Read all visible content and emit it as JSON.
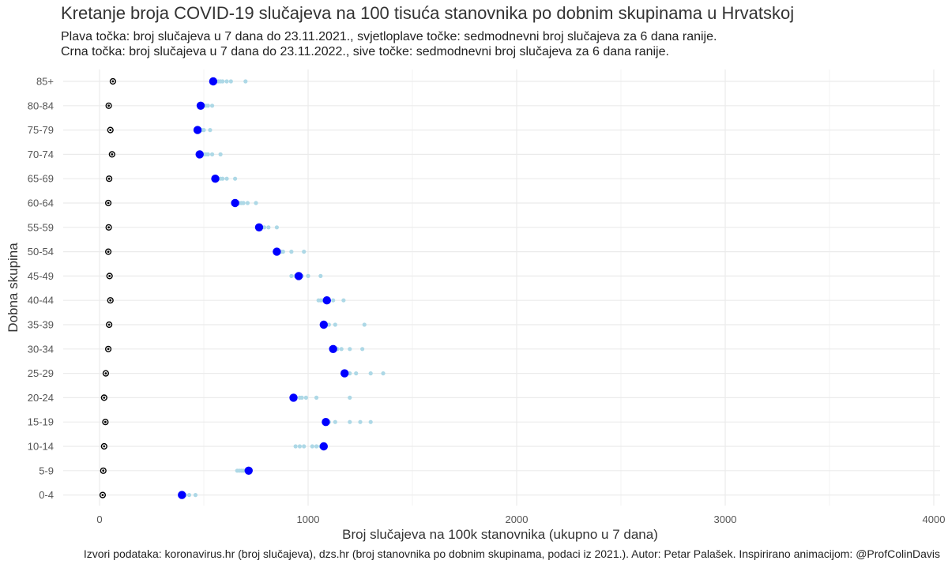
{
  "title": "Kretanje broja COVID-19 slučajeva na 100 tisuća stanovnika po dobnim skupinama u Hrvatskoj",
  "subtitle_line1": "Plava točka: broj slučajeva u 7 dana do 23.11.2021., svjetloplave točke: sedmodnevni broj slučajeva za 6 dana ranije.",
  "subtitle_line2": "Crna točka: broj slučajeva u 7 dana do 23.11.2022., sive točke: sedmodnevni broj slučajeva za 6 dana ranije.",
  "caption": "Izvori podataka: koronavirus.hr (broj slučajeva), dzs.hr (broj stanovnika po dobnim skupinama, podaci iz 2021.). Autor: Petar Palašek. Inspirirano animacijom: @ProfColinDavis",
  "colors": {
    "current_2021": "#0000ff",
    "previous_2021": "#add8e6",
    "current_2022": "#000000",
    "previous_2022": "#bebebe",
    "grid": "#ebebeb"
  },
  "chart_data": {
    "type": "scatter",
    "xlabel": "Broj slučajeva na 100k stanovnika (ukupno u 7 dana)",
    "ylabel": "Dobna skupina",
    "xlim": [
      -170,
      4030
    ],
    "x_ticks": [
      0,
      1000,
      2000,
      3000,
      4000
    ],
    "grid": true,
    "categories": [
      "0-4",
      "5-9",
      "10-14",
      "15-19",
      "20-24",
      "25-29",
      "30-34",
      "35-39",
      "40-44",
      "45-49",
      "50-54",
      "55-59",
      "60-64",
      "65-69",
      "70-74",
      "75-79",
      "80-84",
      "85+"
    ],
    "series": [
      {
        "key": "previous_2021",
        "values": [
          [
            460,
            430,
            410,
            400,
            395,
            390
          ],
          [
            660,
            670,
            680,
            690,
            700,
            705
          ],
          [
            940,
            960,
            980,
            1020,
            1040,
            1060
          ],
          [
            1300,
            1250,
            1200,
            1130,
            1100,
            1090
          ],
          [
            1200,
            1040,
            990,
            970,
            960,
            940
          ],
          [
            1360,
            1300,
            1230,
            1200,
            1190,
            1180
          ],
          [
            1260,
            1200,
            1160,
            1140,
            1130,
            1120
          ],
          [
            1270,
            1130,
            1100,
            1090,
            1080,
            1075
          ],
          [
            1170,
            1120,
            1090,
            1070,
            1060,
            1050
          ],
          [
            1060,
            1000,
            970,
            960,
            940,
            920
          ],
          [
            980,
            920,
            880,
            870,
            860,
            850
          ],
          [
            850,
            810,
            790,
            780,
            770,
            760
          ],
          [
            750,
            710,
            690,
            680,
            670,
            660
          ],
          [
            650,
            610,
            590,
            580,
            570,
            560
          ],
          [
            580,
            540,
            520,
            510,
            500,
            480
          ],
          [
            530,
            500,
            490,
            480,
            470,
            460
          ],
          [
            540,
            520,
            510,
            500,
            495,
            490
          ],
          [
            700,
            630,
            610,
            590,
            580,
            570
          ]
        ]
      },
      {
        "key": "current_2021",
        "values": [
          395,
          715,
          1075,
          1085,
          930,
          1175,
          1120,
          1075,
          1090,
          955,
          850,
          765,
          650,
          555,
          480,
          470,
          485,
          545
        ]
      },
      {
        "key": "previous_2022",
        "values": [
          [
            12,
            14,
            15,
            16,
            17,
            18
          ],
          [
            14,
            15,
            16,
            17,
            18,
            19
          ],
          [
            18,
            19,
            20,
            22,
            24,
            25
          ],
          [
            25,
            26,
            27,
            28,
            29,
            30
          ],
          [
            20,
            21,
            22,
            23,
            24,
            25
          ],
          [
            28,
            29,
            30,
            31,
            32,
            33
          ],
          [
            38,
            39,
            40,
            41,
            42,
            43
          ],
          [
            42,
            43,
            44,
            45,
            46,
            47
          ],
          [
            48,
            49,
            50,
            51,
            52,
            53
          ],
          [
            45,
            46,
            47,
            48,
            49,
            50
          ],
          [
            40,
            41,
            42,
            43,
            44,
            45
          ],
          [
            40,
            41,
            42,
            43,
            44,
            45
          ],
          [
            38,
            39,
            40,
            41,
            42,
            43
          ],
          [
            42,
            43,
            44,
            45,
            46,
            47
          ],
          [
            55,
            56,
            57,
            58,
            59,
            60
          ],
          [
            48,
            49,
            50,
            51,
            52,
            53
          ],
          [
            40,
            41,
            42,
            43,
            44,
            45
          ],
          [
            60,
            61,
            62,
            63,
            64,
            65
          ]
        ]
      },
      {
        "key": "current_2022",
        "values": [
          15,
          18,
          22,
          28,
          22,
          30,
          42,
          46,
          52,
          48,
          42,
          44,
          42,
          46,
          60,
          52,
          44,
          64
        ]
      }
    ]
  }
}
